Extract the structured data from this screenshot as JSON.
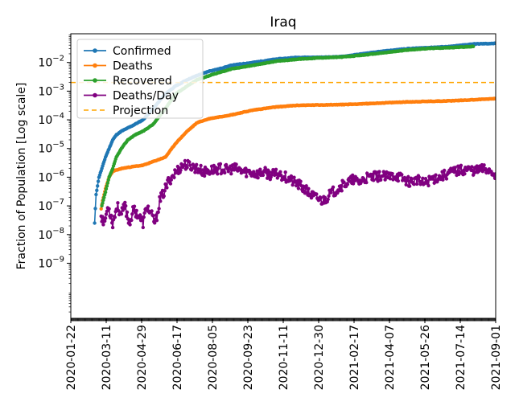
{
  "chart_data": {
    "type": "line",
    "title": "Iraq",
    "xlabel": "",
    "ylabel": "Fraction of Population [Log scale]",
    "yscale": "log",
    "xlim": [
      "2020-01-22",
      "2021-09-01"
    ],
    "ylim": [
      1.2e-11,
      0.1
    ],
    "x_ticks": [
      "2020-01-22",
      "2020-03-11",
      "2020-04-29",
      "2020-06-17",
      "2020-08-05",
      "2020-09-23",
      "2020-11-11",
      "2020-12-30",
      "2021-02-17",
      "2021-04-07",
      "2021-05-26",
      "2021-07-14",
      "2021-09-01"
    ],
    "y_ticks": [
      {
        "value": 1e-09,
        "base": "10",
        "exp": "−9"
      },
      {
        "value": 1e-08,
        "base": "10",
        "exp": "−8"
      },
      {
        "value": 1e-07,
        "base": "10",
        "exp": "−7"
      },
      {
        "value": 1e-06,
        "base": "10",
        "exp": "−6"
      },
      {
        "value": 1e-05,
        "base": "10",
        "exp": "−5"
      },
      {
        "value": 0.0001,
        "base": "10",
        "exp": "−4"
      },
      {
        "value": 0.001,
        "base": "10",
        "exp": "−3"
      },
      {
        "value": 0.01,
        "base": "10",
        "exp": "−2"
      }
    ],
    "legend_position": "top-left",
    "series": [
      {
        "name": "Confirmed",
        "color": "#1f77b4",
        "style": "line-marker",
        "points": [
          [
            "2020-02-24",
            2.5e-08
          ],
          [
            "2020-02-26",
            2.5e-07
          ],
          [
            "2020-03-01",
            1e-06
          ],
          [
            "2020-03-05",
            2e-06
          ],
          [
            "2020-03-10",
            5e-06
          ],
          [
            "2020-03-15",
            1e-05
          ],
          [
            "2020-03-20",
            2e-05
          ],
          [
            "2020-03-25",
            3e-05
          ],
          [
            "2020-04-01",
            4e-05
          ],
          [
            "2020-04-15",
            6e-05
          ],
          [
            "2020-05-01",
            0.0001
          ],
          [
            "2020-05-15",
            0.00025
          ],
          [
            "2020-06-01",
            0.0008
          ],
          [
            "2020-06-15",
            0.0015
          ],
          [
            "2020-07-01",
            0.0025
          ],
          [
            "2020-07-15",
            0.0035
          ],
          [
            "2020-08-01",
            0.005
          ],
          [
            "2020-08-15",
            0.006
          ],
          [
            "2020-09-01",
            0.008
          ],
          [
            "2020-10-01",
            0.01
          ],
          [
            "2020-11-01",
            0.013
          ],
          [
            "2020-12-01",
            0.015
          ],
          [
            "2021-01-01",
            0.015
          ],
          [
            "2021-02-01",
            0.016
          ],
          [
            "2021-03-01",
            0.02
          ],
          [
            "2021-04-01",
            0.025
          ],
          [
            "2021-05-01",
            0.03
          ],
          [
            "2021-06-01",
            0.033
          ],
          [
            "2021-07-01",
            0.036
          ],
          [
            "2021-08-01",
            0.044
          ],
          [
            "2021-09-01",
            0.046
          ]
        ]
      },
      {
        "name": "Deaths",
        "color": "#ff7f0e",
        "style": "line-marker",
        "points": [
          [
            "2020-03-04",
            8e-08
          ],
          [
            "2020-03-06",
            1.5e-07
          ],
          [
            "2020-03-10",
            4e-07
          ],
          [
            "2020-03-15",
            1e-06
          ],
          [
            "2020-03-20",
            1.6e-06
          ],
          [
            "2020-04-01",
            2e-06
          ],
          [
            "2020-04-15",
            2.3e-06
          ],
          [
            "2020-05-01",
            2.6e-06
          ],
          [
            "2020-05-15",
            3.5e-06
          ],
          [
            "2020-06-01",
            5e-06
          ],
          [
            "2020-06-15",
            1.5e-05
          ],
          [
            "2020-07-01",
            4e-05
          ],
          [
            "2020-07-15",
            8e-05
          ],
          [
            "2020-08-01",
            0.00011
          ],
          [
            "2020-09-01",
            0.00015
          ],
          [
            "2020-10-01",
            0.00022
          ],
          [
            "2020-11-01",
            0.00028
          ],
          [
            "2020-12-01",
            0.00032
          ],
          [
            "2021-01-01",
            0.00033
          ],
          [
            "2021-02-01",
            0.00034
          ],
          [
            "2021-03-01",
            0.00036
          ],
          [
            "2021-04-01",
            0.00039
          ],
          [
            "2021-05-01",
            0.00042
          ],
          [
            "2021-06-01",
            0.00044
          ],
          [
            "2021-07-01",
            0.00046
          ],
          [
            "2021-08-01",
            0.0005
          ],
          [
            "2021-09-01",
            0.00055
          ]
        ]
      },
      {
        "name": "Recovered",
        "color": "#2ca02c",
        "style": "line-marker",
        "points": [
          [
            "2020-03-05",
            1e-07
          ],
          [
            "2020-03-10",
            3e-07
          ],
          [
            "2020-03-15",
            1e-06
          ],
          [
            "2020-03-20",
            2e-06
          ],
          [
            "2020-03-25",
            5e-06
          ],
          [
            "2020-04-01",
            1e-05
          ],
          [
            "2020-04-10",
            2e-05
          ],
          [
            "2020-04-20",
            3e-05
          ],
          [
            "2020-05-01",
            4e-05
          ],
          [
            "2020-05-15",
            7e-05
          ],
          [
            "2020-06-01",
            0.00025
          ],
          [
            "2020-06-15",
            0.0008
          ],
          [
            "2020-07-01",
            0.0015
          ],
          [
            "2020-07-15",
            0.0025
          ],
          [
            "2020-08-01",
            0.0035
          ],
          [
            "2020-08-15",
            0.0045
          ],
          [
            "2020-09-01",
            0.006
          ],
          [
            "2020-10-01",
            0.008
          ],
          [
            "2020-11-01",
            0.011
          ],
          [
            "2020-12-01",
            0.013
          ],
          [
            "2021-01-01",
            0.0145
          ],
          [
            "2021-02-01",
            0.0155
          ],
          [
            "2021-03-01",
            0.018
          ],
          [
            "2021-04-01",
            0.022
          ],
          [
            "2021-05-01",
            0.027
          ],
          [
            "2021-06-01",
            0.031
          ],
          [
            "2021-07-01",
            0.033
          ],
          [
            "2021-08-01",
            0.036
          ]
        ]
      },
      {
        "name": "Deaths/Day",
        "color": "#800080",
        "style": "line-marker",
        "points": [
          [
            "2020-03-04",
            5e-08
          ],
          [
            "2020-03-08",
            2.5e-08
          ],
          [
            "2020-03-14",
            1e-07
          ],
          [
            "2020-03-20",
            2.5e-08
          ],
          [
            "2020-03-26",
            1e-07
          ],
          [
            "2020-04-01",
            5e-08
          ],
          [
            "2020-04-06",
            1e-07
          ],
          [
            "2020-04-12",
            2.5e-08
          ],
          [
            "2020-04-18",
            7.5e-08
          ],
          [
            "2020-04-24",
            5e-08
          ],
          [
            "2020-05-01",
            2.5e-08
          ],
          [
            "2020-05-06",
            1e-07
          ],
          [
            "2020-05-12",
            5e-08
          ],
          [
            "2020-05-18",
            2.5e-08
          ],
          [
            "2020-05-24",
            1.5e-07
          ],
          [
            "2020-05-30",
            3e-07
          ],
          [
            "2020-06-05",
            7e-07
          ],
          [
            "2020-06-12",
            1.2e-06
          ],
          [
            "2020-06-20",
            2e-06
          ],
          [
            "2020-06-27",
            2.8e-06
          ],
          [
            "2020-07-05",
            2.5e-06
          ],
          [
            "2020-07-15",
            2e-06
          ],
          [
            "2020-07-25",
            1.5e-06
          ],
          [
            "2020-08-05",
            1.8e-06
          ],
          [
            "2020-08-15",
            2e-06
          ],
          [
            "2020-08-25",
            1.8e-06
          ],
          [
            "2020-09-05",
            2e-06
          ],
          [
            "2020-09-15",
            1.6e-06
          ],
          [
            "2020-09-25",
            1.5e-06
          ],
          [
            "2020-10-05",
            1.3e-06
          ],
          [
            "2020-10-15",
            1.5e-06
          ],
          [
            "2020-10-25",
            1.2e-06
          ],
          [
            "2020-11-05",
            1.3e-06
          ],
          [
            "2020-11-15",
            1e-06
          ],
          [
            "2020-11-25",
            7e-07
          ],
          [
            "2020-12-05",
            5e-07
          ],
          [
            "2020-12-15",
            3e-07
          ],
          [
            "2020-12-25",
            2e-07
          ],
          [
            "2021-01-05",
            1.5e-07
          ],
          [
            "2021-01-15",
            2.5e-07
          ],
          [
            "2021-01-25",
            4e-07
          ],
          [
            "2021-02-05",
            6e-07
          ],
          [
            "2021-02-15",
            8e-07
          ],
          [
            "2021-02-25",
            7e-07
          ],
          [
            "2021-03-05",
            9e-07
          ],
          [
            "2021-03-15",
            1e-06
          ],
          [
            "2021-03-25",
            1.1e-06
          ],
          [
            "2021-04-05",
            1e-06
          ],
          [
            "2021-04-15",
            1.2e-06
          ],
          [
            "2021-04-25",
            9e-07
          ],
          [
            "2021-05-05",
            7e-07
          ],
          [
            "2021-05-15",
            8e-07
          ],
          [
            "2021-05-25",
            6e-07
          ],
          [
            "2021-06-05",
            9e-07
          ],
          [
            "2021-06-15",
            1e-06
          ],
          [
            "2021-06-25",
            1.3e-06
          ],
          [
            "2021-07-05",
            1.6e-06
          ],
          [
            "2021-07-15",
            1.8e-06
          ],
          [
            "2021-07-25",
            1.9e-06
          ],
          [
            "2021-08-05",
            1.7e-06
          ],
          [
            "2021-08-15",
            2e-06
          ],
          [
            "2021-08-25",
            1.7e-06
          ],
          [
            "2021-09-01",
            1.3e-06
          ]
        ]
      },
      {
        "name": "Projection",
        "color": "#ffa500",
        "style": "dashed",
        "value": 0.002
      }
    ]
  }
}
